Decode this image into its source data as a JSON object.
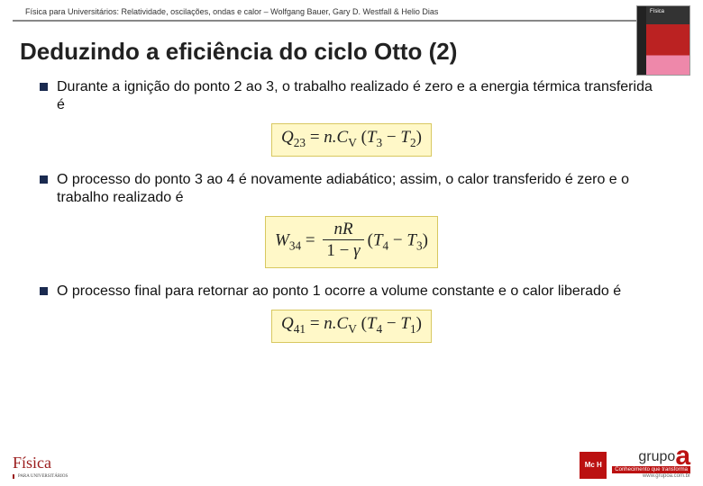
{
  "header": {
    "citation": "Física para Universitários: Relatividade, oscilações, ondas e calor – Wolfgang Bauer, Gary D. Westfall & Helio Dias"
  },
  "title": "Deduzindo a eficiência do ciclo Otto (2)",
  "bullets": [
    {
      "text": "Durante a ignição do ponto 2 ao 3, o trabalho realizado é zero e a energia térmica transferida é",
      "formula_html": "<i>Q</i><sub>23</sub> <span class='up'>=</span> <i>n</i>.<i>C</i><sub>V</sub> <span class='up'>(</span><i>T</i><sub>3</sub> <span class='up'>&minus;</span> <i>T</i><sub>2</sub><span class='up'>)</span>"
    },
    {
      "text": "O processo do ponto 3 ao 4 é novamente adiabático; assim, o calor transferido é zero e o trabalho realizado é",
      "formula_html": "<i>W</i><sub>34</sub> <span class='up'>=</span> <span class='frac'><span class='num'><i>nR</i></span><span class='den'><span class='up'>1 &minus;</span> <i>&gamma;</i></span></span><span class='up'>(</span><i>T</i><sub>4</sub> <span class='up'>&minus;</span> <i>T</i><sub>3</sub><span class='up'>)</span>"
    },
    {
      "text": "O processo final para retornar ao ponto 1 ocorre a volume constante e o calor liberado é",
      "formula_html": "<i>Q</i><sub>41</sub> <span class='up'>=</span> <i>n</i>.<i>C</i><sub>V</sub> <span class='up'>(</span><i>T</i><sub>4</sub> <span class='up'>&minus;</span> <i>T</i><sub>1</sub><span class='up'>)</span>"
    }
  ],
  "footer": {
    "left_logo": "Física",
    "left_sub": "PARA UNIVERSITÁRIOS",
    "mh": "Mc H",
    "grupoa": "grupo",
    "grupoa_tag": "Conhecimento que transforma",
    "grupoa_url": "www.grupoa.com.br"
  },
  "colors": {
    "bullet": "#1a2a50",
    "formula_bg": "#fff8c8",
    "formula_border": "#d8c860",
    "brand_red": "#9a1b1b"
  }
}
